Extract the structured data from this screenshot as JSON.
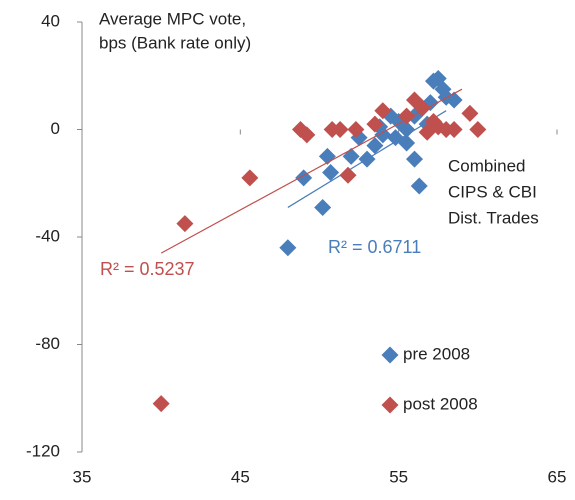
{
  "chart_data": {
    "type": "scatter",
    "y_label": [
      "Average MPC vote,",
      "bps (Bank rate only)"
    ],
    "annotation": [
      "Combined",
      "CIPS & CBI",
      "Dist. Trades"
    ],
    "xlim": [
      35,
      65
    ],
    "xticks": [
      35,
      45,
      55,
      65
    ],
    "ylim": [
      -120,
      40
    ],
    "yticks": [
      -120,
      -80,
      -40,
      0,
      40
    ],
    "legend": "bottom-right",
    "series": [
      {
        "name": "pre 2008",
        "color": "#4a7ebb",
        "x": [
          48,
          49,
          50.2,
          50.5,
          50.7,
          52,
          52.5,
          53,
          53.5,
          54,
          54.5,
          55,
          55.5,
          55.5,
          56,
          56,
          56.3,
          56.5,
          57,
          57.2,
          57.5,
          57.8,
          58,
          58.5,
          56.8,
          54.8,
          53.8
        ],
        "values": [
          -44,
          -18,
          -29,
          -10,
          -16,
          -10,
          -3,
          -11,
          -6,
          -2,
          5,
          3,
          0,
          -5,
          5,
          -11,
          -21,
          8,
          10,
          18,
          19,
          15,
          12,
          11,
          2,
          -3,
          1
        ],
        "trend_x": [
          48,
          58
        ],
        "trend_y": [
          -29,
          7
        ],
        "r2_label": "R² = 0.6711"
      },
      {
        "name": "post 2008",
        "color": "#c0504d",
        "x": [
          40,
          41.5,
          45.6,
          48.8,
          49.2,
          50.8,
          51.3,
          51.8,
          52.3,
          53.5,
          54,
          55.5,
          56,
          56.5,
          57.2,
          57.5,
          58,
          58.5,
          59.5,
          60,
          56.8
        ],
        "values": [
          -102,
          -35,
          -18,
          0,
          -2,
          0,
          0,
          -17,
          0,
          2,
          7,
          5,
          11,
          8,
          3,
          1,
          0,
          0,
          6,
          0,
          -1
        ],
        "trend_x": [
          40,
          59
        ],
        "trend_y": [
          -46,
          15
        ],
        "r2_label": "R² = 0.5237"
      }
    ]
  }
}
